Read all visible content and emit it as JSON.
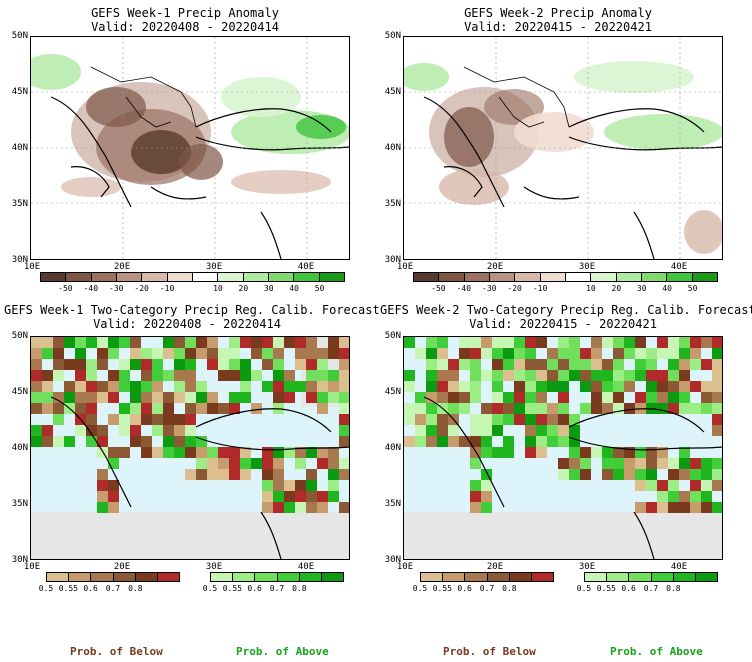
{
  "panels": [
    {
      "title": "GEFS Week-1 Precip Anomaly",
      "valid": "Valid: 20220408 - 20220414"
    },
    {
      "title": "GEFS Week-2 Precip Anomaly",
      "valid": "Valid: 20220415 - 20220421"
    },
    {
      "title": "GEFS Week-1 Two-Category Precip Reg. Calib. Forecast",
      "valid": "Valid: 20220408 - 20220414"
    },
    {
      "title": "GEFS Week-2 Two-Category Precip Reg. Calib. Forecast",
      "valid": "Valid: 20220415 - 20220421"
    }
  ],
  "lat_labels": [
    "50N",
    "45N",
    "40N",
    "35N",
    "30N"
  ],
  "lon_labels": [
    "10E",
    "20E",
    "30E",
    "40E"
  ],
  "anomaly_scale": {
    "labels": [
      "-50",
      "-40",
      "-30",
      "-20",
      "-10",
      "10",
      "20",
      "30",
      "40",
      "50"
    ],
    "colors": [
      "#5a3a2e",
      "#7e5646",
      "#9b7262",
      "#b89384",
      "#d8b8aa",
      "#f1dcd2",
      "#ffffff",
      "#d8f5d0",
      "#aeeaa0",
      "#7fdb6e",
      "#3fc43b",
      "#1a9c1a"
    ]
  },
  "prob_below": {
    "title": "Prob. of Below",
    "labels": [
      "0.5",
      "0.55",
      "0.6",
      "0.7",
      "0.8"
    ],
    "colors": [
      "#dcbf8e",
      "#c69c6d",
      "#a8784f",
      "#8b5a35",
      "#7a3a1e",
      "#b02a2a"
    ]
  },
  "prob_above": {
    "title": "Prob. of Above",
    "labels": [
      "0.5",
      "0.55",
      "0.6",
      "0.7",
      "0.8"
    ],
    "colors": [
      "#c7f5b4",
      "#9ded86",
      "#70e05c",
      "#3fce39",
      "#1fb51f",
      "#0b9a10"
    ]
  },
  "colors": {
    "sea": "#ddf5fa",
    "outside": "#e6e6e6",
    "brown_text": "#7a3a1e",
    "green_text": "#17a317"
  }
}
